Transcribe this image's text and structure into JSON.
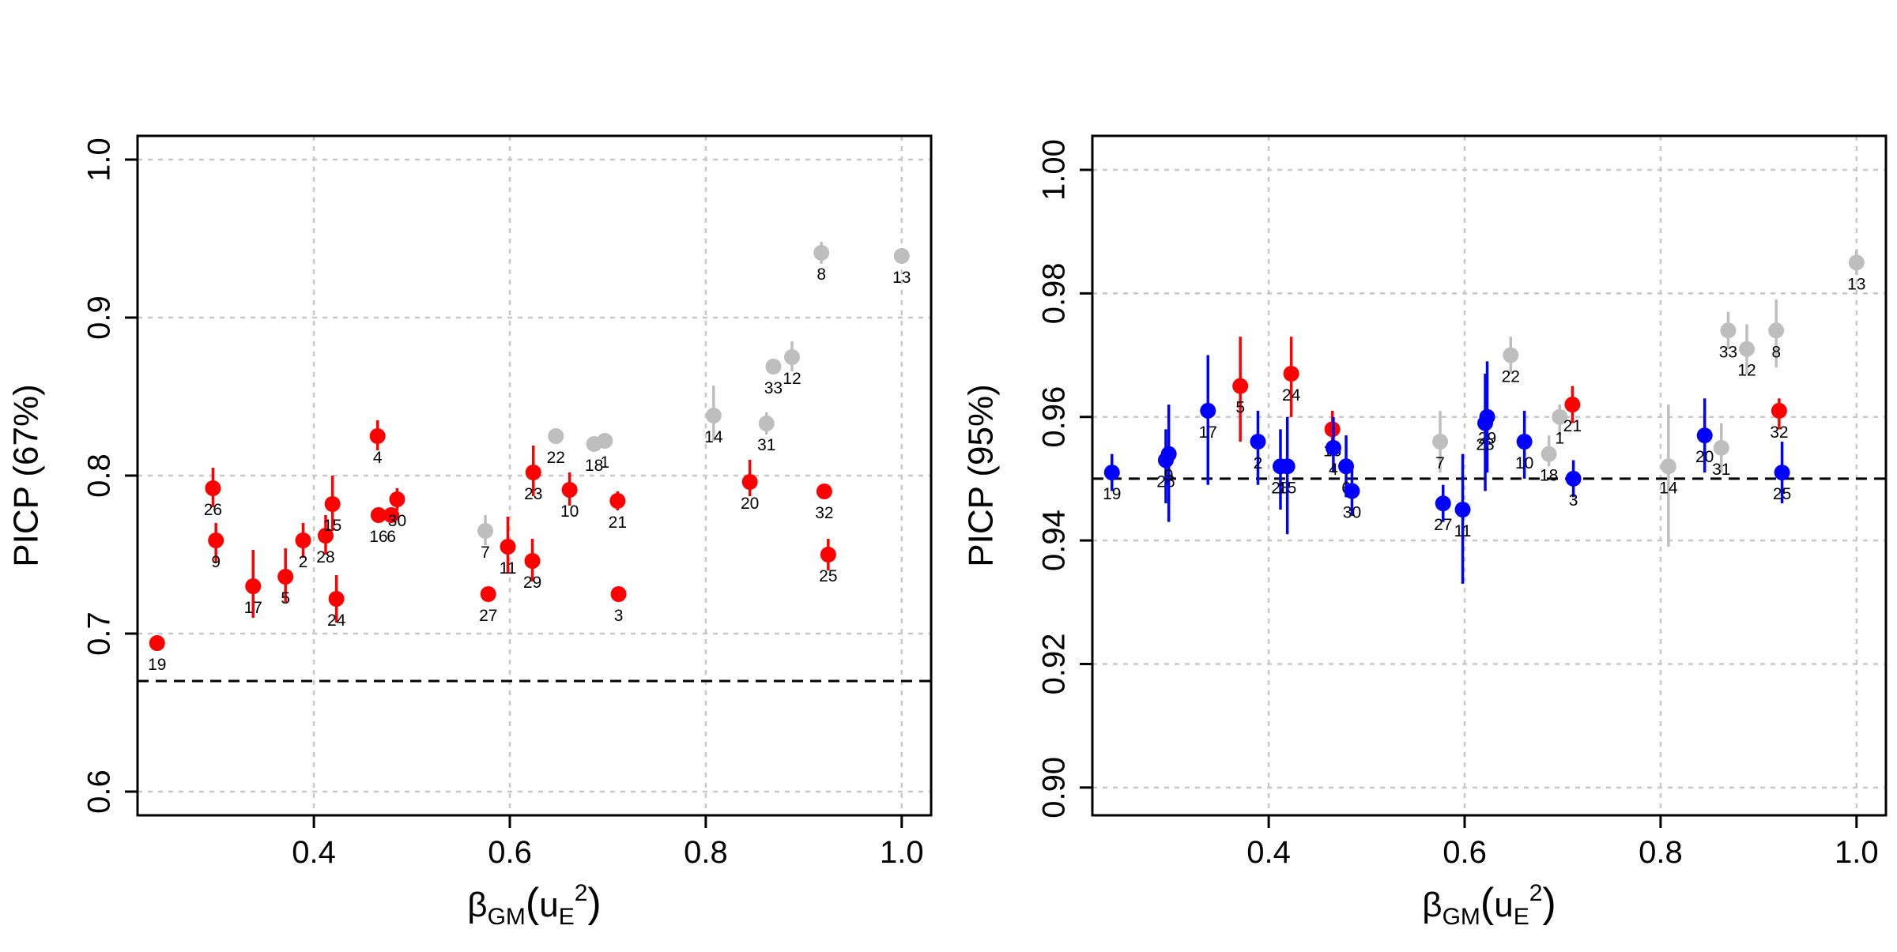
{
  "colors": {
    "red": "#ff0000",
    "blue": "#0000ff",
    "gray": "#bebebe",
    "grid": "#c8c8c8",
    "axis": "#000000"
  },
  "chart_data": [
    {
      "type": "scatter",
      "title": "",
      "ylabel": "PICP (67%)",
      "xlabel_base": "β",
      "xlabel_sub": "GM",
      "xlabel_arg": "u",
      "xlabel_arg_sub": "E",
      "xlabel_arg_sup": "2",
      "xlim": [
        0.22,
        1.03
      ],
      "ylim": [
        0.585,
        1.015
      ],
      "xticks": [
        0.4,
        0.6,
        0.8,
        1.0
      ],
      "xtick_labels": [
        "0.4",
        "0.6",
        "0.8",
        "1.0"
      ],
      "yticks": [
        0.6,
        0.7,
        0.8,
        0.9,
        1.0
      ],
      "ytick_labels": [
        "0.6",
        "0.7",
        "0.8",
        "0.9",
        "1.0"
      ],
      "grid": true,
      "reference_line": 0.67,
      "points": [
        {
          "label": "19",
          "x": 0.24,
          "y": 0.694,
          "lo": 0.689,
          "hi": 0.699,
          "color": "red"
        },
        {
          "label": "26",
          "x": 0.297,
          "y": 0.792,
          "lo": 0.78,
          "hi": 0.805,
          "color": "red"
        },
        {
          "label": "9",
          "x": 0.3,
          "y": 0.759,
          "lo": 0.745,
          "hi": 0.77,
          "color": "red"
        },
        {
          "label": "17",
          "x": 0.338,
          "y": 0.73,
          "lo": 0.71,
          "hi": 0.753,
          "color": "red"
        },
        {
          "label": "5",
          "x": 0.371,
          "y": 0.736,
          "lo": 0.72,
          "hi": 0.754,
          "color": "red"
        },
        {
          "label": "2",
          "x": 0.389,
          "y": 0.759,
          "lo": 0.748,
          "hi": 0.77,
          "color": "red"
        },
        {
          "label": "28",
          "x": 0.412,
          "y": 0.762,
          "lo": 0.75,
          "hi": 0.775,
          "color": "red"
        },
        {
          "label": "15",
          "x": 0.419,
          "y": 0.782,
          "lo": 0.765,
          "hi": 0.8,
          "color": "red"
        },
        {
          "label": "24",
          "x": 0.423,
          "y": 0.722,
          "lo": 0.707,
          "hi": 0.737,
          "color": "red"
        },
        {
          "label": "4",
          "x": 0.465,
          "y": 0.825,
          "lo": 0.816,
          "hi": 0.835,
          "color": "red"
        },
        {
          "label": "16",
          "x": 0.466,
          "y": 0.775,
          "lo": 0.77,
          "hi": 0.78,
          "color": "red"
        },
        {
          "label": "6",
          "x": 0.479,
          "y": 0.775,
          "lo": 0.77,
          "hi": 0.78,
          "color": "red"
        },
        {
          "label": "30",
          "x": 0.485,
          "y": 0.785,
          "lo": 0.778,
          "hi": 0.792,
          "color": "red"
        },
        {
          "label": "7",
          "x": 0.575,
          "y": 0.765,
          "lo": 0.756,
          "hi": 0.775,
          "color": "gray"
        },
        {
          "label": "27",
          "x": 0.578,
          "y": 0.725,
          "lo": 0.721,
          "hi": 0.729,
          "color": "red"
        },
        {
          "label": "11",
          "x": 0.598,
          "y": 0.755,
          "lo": 0.738,
          "hi": 0.774,
          "color": "red"
        },
        {
          "label": "29",
          "x": 0.623,
          "y": 0.746,
          "lo": 0.733,
          "hi": 0.76,
          "color": "red"
        },
        {
          "label": "23",
          "x": 0.624,
          "y": 0.802,
          "lo": 0.787,
          "hi": 0.819,
          "color": "red"
        },
        {
          "label": "22",
          "x": 0.647,
          "y": 0.825,
          "lo": 0.82,
          "hi": 0.83,
          "color": "gray"
        },
        {
          "label": "10",
          "x": 0.661,
          "y": 0.791,
          "lo": 0.781,
          "hi": 0.802,
          "color": "red"
        },
        {
          "label": "18",
          "x": 0.686,
          "y": 0.82,
          "lo": 0.816,
          "hi": 0.824,
          "color": "gray"
        },
        {
          "label": "1",
          "x": 0.697,
          "y": 0.822,
          "lo": 0.818,
          "hi": 0.826,
          "color": "gray"
        },
        {
          "label": "3",
          "x": 0.711,
          "y": 0.725,
          "lo": 0.72,
          "hi": 0.73,
          "color": "red"
        },
        {
          "label": "21",
          "x": 0.71,
          "y": 0.784,
          "lo": 0.778,
          "hi": 0.79,
          "color": "red"
        },
        {
          "label": "14",
          "x": 0.808,
          "y": 0.838,
          "lo": 0.822,
          "hi": 0.857,
          "color": "gray"
        },
        {
          "label": "20",
          "x": 0.845,
          "y": 0.796,
          "lo": 0.787,
          "hi": 0.81,
          "color": "red"
        },
        {
          "label": "31",
          "x": 0.862,
          "y": 0.833,
          "lo": 0.826,
          "hi": 0.84,
          "color": "gray"
        },
        {
          "label": "33",
          "x": 0.869,
          "y": 0.869,
          "lo": 0.864,
          "hi": 0.874,
          "color": "gray"
        },
        {
          "label": "12",
          "x": 0.888,
          "y": 0.875,
          "lo": 0.866,
          "hi": 0.885,
          "color": "gray"
        },
        {
          "label": "8",
          "x": 0.918,
          "y": 0.941,
          "lo": 0.934,
          "hi": 0.948,
          "color": "gray"
        },
        {
          "label": "32",
          "x": 0.921,
          "y": 0.79,
          "lo": 0.786,
          "hi": 0.794,
          "color": "red"
        },
        {
          "label": "25",
          "x": 0.925,
          "y": 0.75,
          "lo": 0.74,
          "hi": 0.76,
          "color": "red"
        },
        {
          "label": "13",
          "x": 1.0,
          "y": 0.939,
          "lo": 0.935,
          "hi": 0.943,
          "color": "gray"
        }
      ]
    },
    {
      "type": "scatter",
      "title": "",
      "ylabel": "PICP (95%)",
      "xlabel_base": "β",
      "xlabel_sub": "GM",
      "xlabel_arg": "u",
      "xlabel_arg_sub": "E",
      "xlabel_arg_sup": "2",
      "xlim": [
        0.22,
        1.03
      ],
      "ylim": [
        0.8955,
        1.0055
      ],
      "xticks": [
        0.4,
        0.6,
        0.8,
        1.0
      ],
      "xtick_labels": [
        "0.4",
        "0.6",
        "0.8",
        "1.0"
      ],
      "yticks": [
        0.9,
        0.92,
        0.94,
        0.96,
        0.98,
        1.0
      ],
      "ytick_labels": [
        "0.90",
        "0.92",
        "0.94",
        "0.96",
        "0.98",
        "1.00"
      ],
      "grid": true,
      "reference_line": 0.95,
      "points": [
        {
          "label": "19",
          "x": 0.24,
          "y": 0.951,
          "lo": 0.948,
          "hi": 0.954,
          "color": "blue"
        },
        {
          "label": "26",
          "x": 0.295,
          "y": 0.953,
          "lo": 0.946,
          "hi": 0.958,
          "color": "blue"
        },
        {
          "label": "9",
          "x": 0.298,
          "y": 0.954,
          "lo": 0.943,
          "hi": 0.962,
          "color": "blue"
        },
        {
          "label": "17",
          "x": 0.338,
          "y": 0.961,
          "lo": 0.949,
          "hi": 0.97,
          "color": "blue"
        },
        {
          "label": "5",
          "x": 0.371,
          "y": 0.965,
          "lo": 0.956,
          "hi": 0.973,
          "color": "red"
        },
        {
          "label": "2",
          "x": 0.389,
          "y": 0.956,
          "lo": 0.949,
          "hi": 0.961,
          "color": "blue"
        },
        {
          "label": "28",
          "x": 0.412,
          "y": 0.952,
          "lo": 0.945,
          "hi": 0.958,
          "color": "blue"
        },
        {
          "label": "15",
          "x": 0.419,
          "y": 0.952,
          "lo": 0.941,
          "hi": 0.96,
          "color": "blue"
        },
        {
          "label": "24",
          "x": 0.423,
          "y": 0.967,
          "lo": 0.96,
          "hi": 0.973,
          "color": "red"
        },
        {
          "label": "16",
          "x": 0.465,
          "y": 0.958,
          "lo": 0.954,
          "hi": 0.961,
          "color": "red"
        },
        {
          "label": "4",
          "x": 0.466,
          "y": 0.955,
          "lo": 0.951,
          "hi": 0.96,
          "color": "blue"
        },
        {
          "label": "6",
          "x": 0.479,
          "y": 0.952,
          "lo": 0.947,
          "hi": 0.957,
          "color": "blue"
        },
        {
          "label": "30",
          "x": 0.485,
          "y": 0.948,
          "lo": 0.944,
          "hi": 0.952,
          "color": "blue"
        },
        {
          "label": "7",
          "x": 0.575,
          "y": 0.956,
          "lo": 0.951,
          "hi": 0.961,
          "color": "gray"
        },
        {
          "label": "27",
          "x": 0.578,
          "y": 0.946,
          "lo": 0.943,
          "hi": 0.949,
          "color": "blue"
        },
        {
          "label": "11",
          "x": 0.598,
          "y": 0.945,
          "lo": 0.933,
          "hi": 0.954,
          "color": "blue"
        },
        {
          "label": "29",
          "x": 0.623,
          "y": 0.96,
          "lo": 0.951,
          "hi": 0.969,
          "color": "blue"
        },
        {
          "label": "23",
          "x": 0.621,
          "y": 0.959,
          "lo": 0.948,
          "hi": 0.967,
          "color": "blue"
        },
        {
          "label": "22",
          "x": 0.647,
          "y": 0.97,
          "lo": 0.967,
          "hi": 0.973,
          "color": "gray"
        },
        {
          "label": "10",
          "x": 0.661,
          "y": 0.956,
          "lo": 0.95,
          "hi": 0.961,
          "color": "blue"
        },
        {
          "label": "18",
          "x": 0.686,
          "y": 0.954,
          "lo": 0.952,
          "hi": 0.957,
          "color": "gray"
        },
        {
          "label": "1",
          "x": 0.697,
          "y": 0.96,
          "lo": 0.957,
          "hi": 0.962,
          "color": "gray"
        },
        {
          "label": "21",
          "x": 0.71,
          "y": 0.962,
          "lo": 0.959,
          "hi": 0.965,
          "color": "red"
        },
        {
          "label": "3",
          "x": 0.711,
          "y": 0.95,
          "lo": 0.947,
          "hi": 0.953,
          "color": "blue"
        },
        {
          "label": "14",
          "x": 0.808,
          "y": 0.952,
          "lo": 0.939,
          "hi": 0.962,
          "color": "gray"
        },
        {
          "label": "20",
          "x": 0.845,
          "y": 0.957,
          "lo": 0.951,
          "hi": 0.963,
          "color": "blue"
        },
        {
          "label": "31",
          "x": 0.862,
          "y": 0.955,
          "lo": 0.951,
          "hi": 0.959,
          "color": "gray"
        },
        {
          "label": "33",
          "x": 0.869,
          "y": 0.974,
          "lo": 0.971,
          "hi": 0.977,
          "color": "gray"
        },
        {
          "label": "12",
          "x": 0.888,
          "y": 0.971,
          "lo": 0.967,
          "hi": 0.975,
          "color": "gray"
        },
        {
          "label": "8",
          "x": 0.918,
          "y": 0.974,
          "lo": 0.968,
          "hi": 0.979,
          "color": "gray"
        },
        {
          "label": "32",
          "x": 0.921,
          "y": 0.961,
          "lo": 0.958,
          "hi": 0.963,
          "color": "red"
        },
        {
          "label": "25",
          "x": 0.924,
          "y": 0.951,
          "lo": 0.946,
          "hi": 0.956,
          "color": "blue"
        },
        {
          "label": "13",
          "x": 1.0,
          "y": 0.985,
          "lo": 0.983,
          "hi": 0.987,
          "color": "gray"
        }
      ]
    }
  ]
}
